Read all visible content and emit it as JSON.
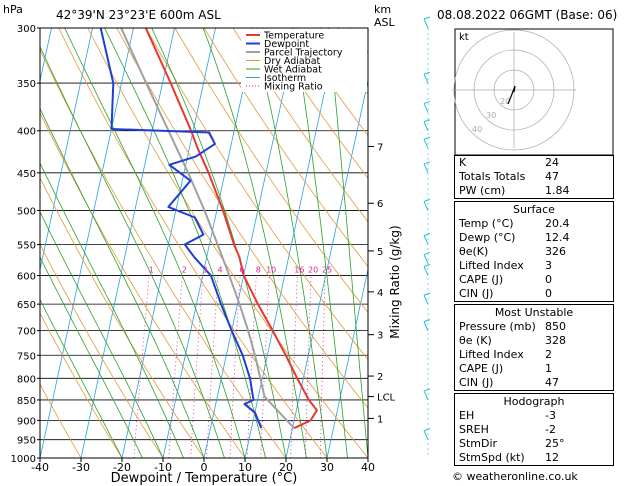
{
  "header": {
    "left_unit": "hPa",
    "location": "42°39'N  23°23'E  600m  ASL",
    "km_label": "km",
    "asl_label": "ASL",
    "datetime": "08.08.2022  06GMT  (Base: 06)"
  },
  "legend": [
    "Temperature",
    "Dewpoint",
    "Parcel Trajectory",
    "Dry Adiabat",
    "Wet Adiabat",
    "Isotherm",
    "Mixing Ratio"
  ],
  "colors": {
    "temperature": "#e8372f",
    "dewpoint": "#1f3fd4",
    "parcel": "#a0a0a0",
    "dry_adiabat": "#e09a3a",
    "wet_adiabat": "#2aa02a",
    "isotherm": "#2aa0e0",
    "mixing_ratio": "#e0208c",
    "wind": "#22c0d8"
  },
  "chart_data": {
    "type": "skew-t",
    "xlabel": "Dewpoint / Temperature (°C)",
    "ylabel": "Mixing Ratio (g/kg)",
    "x_ticks": [
      -40,
      -30,
      -20,
      -10,
      0,
      10,
      20,
      30,
      40
    ],
    "pressure_levels": [
      300,
      350,
      400,
      450,
      500,
      550,
      600,
      650,
      700,
      750,
      800,
      850,
      900,
      950,
      1000
    ],
    "ylim": [
      1000,
      300
    ],
    "xlim": [
      -40,
      40
    ],
    "km_ticks": [
      {
        "label": "7",
        "p": 418
      },
      {
        "label": "6",
        "p": 490
      },
      {
        "label": "5",
        "p": 560
      },
      {
        "label": "4",
        "p": 628
      },
      {
        "label": "3",
        "p": 708
      },
      {
        "label": "2",
        "p": 795
      },
      {
        "label": "LCL",
        "p": 842
      },
      {
        "label": "1",
        "p": 895
      }
    ],
    "mixing_ratio_labels": [
      "1",
      "2",
      "3",
      "4",
      "6",
      "8",
      "10",
      "16",
      "20",
      "25"
    ],
    "temperature": [
      {
        "p": 920,
        "t": 20.4
      },
      {
        "p": 900,
        "t": 24.0
      },
      {
        "p": 875,
        "t": 25.0
      },
      {
        "p": 850,
        "t": 22.5
      },
      {
        "p": 800,
        "t": 18.5
      },
      {
        "p": 750,
        "t": 14.5
      },
      {
        "p": 700,
        "t": 10.0
      },
      {
        "p": 650,
        "t": 5.0
      },
      {
        "p": 600,
        "t": 0.0
      },
      {
        "p": 570,
        "t": -2.0
      },
      {
        "p": 550,
        "t": -4.0
      },
      {
        "p": 500,
        "t": -8.5
      },
      {
        "p": 450,
        "t": -14.0
      },
      {
        "p": 420,
        "t": -18.0
      },
      {
        "p": 400,
        "t": -20.5
      },
      {
        "p": 350,
        "t": -28.0
      },
      {
        "p": 300,
        "t": -37.0
      }
    ],
    "dewpoint": [
      {
        "p": 920,
        "t": 12.4
      },
      {
        "p": 880,
        "t": 10.0
      },
      {
        "p": 860,
        "t": 7.0
      },
      {
        "p": 850,
        "t": 9.0
      },
      {
        "p": 800,
        "t": 7.0
      },
      {
        "p": 750,
        "t": 4.0
      },
      {
        "p": 700,
        "t": 0.0
      },
      {
        "p": 650,
        "t": -4.0
      },
      {
        "p": 600,
        "t": -8.0
      },
      {
        "p": 570,
        "t": -13.0
      },
      {
        "p": 550,
        "t": -16.0
      },
      {
        "p": 535,
        "t": -12.0
      },
      {
        "p": 510,
        "t": -15.0
      },
      {
        "p": 495,
        "t": -22.0
      },
      {
        "p": 460,
        "t": -18.0
      },
      {
        "p": 440,
        "t": -24.0
      },
      {
        "p": 430,
        "t": -18.0
      },
      {
        "p": 415,
        "t": -14.0
      },
      {
        "p": 402,
        "t": -16.0
      },
      {
        "p": 398,
        "t": -40.0
      },
      {
        "p": 350,
        "t": -42.0
      },
      {
        "p": 300,
        "t": -48.0
      }
    ],
    "parcel": [
      {
        "p": 920,
        "t": 20.4
      },
      {
        "p": 842,
        "t": 11.5
      },
      {
        "p": 800,
        "t": 9.5
      },
      {
        "p": 750,
        "t": 7.0
      },
      {
        "p": 700,
        "t": 4.0
      },
      {
        "p": 650,
        "t": 0.5
      },
      {
        "p": 600,
        "t": -3.5
      },
      {
        "p": 550,
        "t": -8.0
      },
      {
        "p": 500,
        "t": -13.0
      },
      {
        "p": 450,
        "t": -19.0
      },
      {
        "p": 400,
        "t": -26.0
      },
      {
        "p": 350,
        "t": -34.0
      },
      {
        "p": 300,
        "t": -43.0
      }
    ]
  },
  "hodograph": {
    "label": "kt",
    "rings": [
      "20",
      "30",
      "40"
    ]
  },
  "indices": [
    {
      "label": "K",
      "value": "24"
    },
    {
      "label": "Totals Totals",
      "value": "47"
    },
    {
      "label": "PW (cm)",
      "value": "1.84"
    }
  ],
  "surface": {
    "title": "Surface",
    "rows": [
      {
        "label": "Temp (°C)",
        "value": "20.4"
      },
      {
        "label": "Dewp (°C)",
        "value": "12.4"
      },
      {
        "label": "θe(K)",
        "value": "326"
      },
      {
        "label": "Lifted Index",
        "value": "3"
      },
      {
        "label": "CAPE (J)",
        "value": "0"
      },
      {
        "label": "CIN (J)",
        "value": "0"
      }
    ]
  },
  "most_unstable": {
    "title": "Most Unstable",
    "rows": [
      {
        "label": "Pressure (mb)",
        "value": "850"
      },
      {
        "label": "θe (K)",
        "value": "328"
      },
      {
        "label": "Lifted Index",
        "value": "2"
      },
      {
        "label": "CAPE (J)",
        "value": "1"
      },
      {
        "label": "CIN (J)",
        "value": "47"
      }
    ]
  },
  "hodograph_table": {
    "title": "Hodograph",
    "rows": [
      {
        "label": "EH",
        "value": "-3"
      },
      {
        "label": "SREH",
        "value": "-2"
      },
      {
        "label": "StmDir",
        "value": "25°"
      },
      {
        "label": "StmSpd (kt)",
        "value": "12"
      }
    ]
  },
  "credit": "© weatheronline.co.uk"
}
